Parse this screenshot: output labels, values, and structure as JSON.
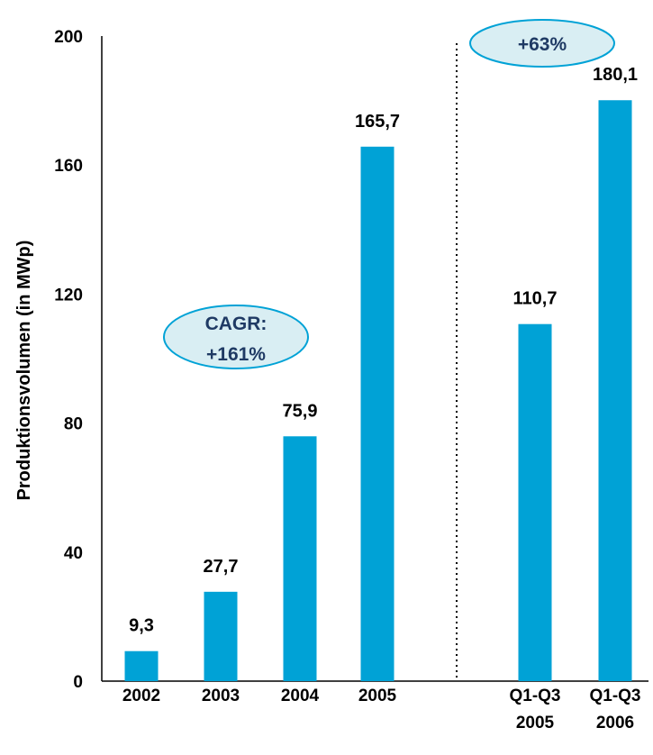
{
  "chart_data": {
    "type": "bar",
    "ylabel": "Produktionsvolumen (in MWp)",
    "ylim": [
      0,
      200
    ],
    "yticks": [
      "0",
      "40",
      "80",
      "120",
      "160",
      "200"
    ],
    "bar_color": "#00a2d6",
    "bars": [
      {
        "label": [
          "2002"
        ],
        "value": 9.3,
        "value_label": "9,3"
      },
      {
        "label": [
          "2003"
        ],
        "value": 27.7,
        "value_label": "27,7"
      },
      {
        "label": [
          "2004"
        ],
        "value": 75.9,
        "value_label": "75,9"
      },
      {
        "label": [
          "2005"
        ],
        "value": 165.7,
        "value_label": "165,7"
      },
      {
        "label": [
          "Q1-Q3",
          "2005"
        ],
        "value": 110.7,
        "value_label": "110,7"
      },
      {
        "label": [
          "Q1-Q3",
          "2006"
        ],
        "value": 180.1,
        "value_label": "180,1"
      }
    ],
    "annotations": [
      {
        "lines": [
          "CAGR:",
          "+161%"
        ]
      },
      {
        "lines": [
          "+63%"
        ]
      }
    ],
    "annotation_fill": "#d9eef3",
    "annotation_stroke": "#00a2d6",
    "separator": "dotted vertical line between 2005 and Q1-Q3 2005"
  }
}
